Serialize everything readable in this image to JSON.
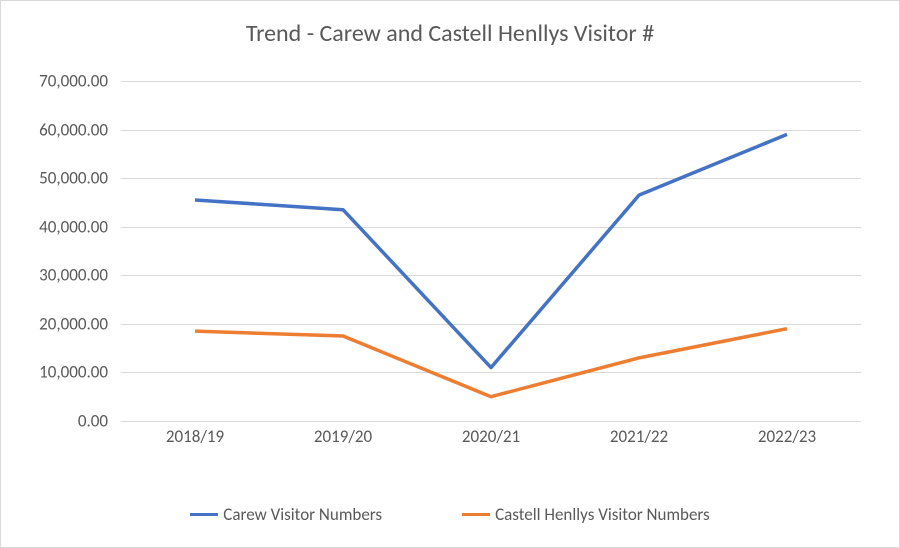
{
  "chart": {
    "type": "line",
    "title": "Trend - Carew and Castell Henllys Visitor #",
    "title_fontsize": 24,
    "title_color": "#595959",
    "background_color": "#ffffff",
    "border_color": "#d9d9d9",
    "tick_fontsize": 17,
    "tick_color": "#595959",
    "grid_color": "#d9d9d9",
    "ylim": [
      0,
      70000
    ],
    "ytick_step": 10000,
    "y_ticks": [
      "0.00",
      "10,000.00",
      "20,000.00",
      "30,000.00",
      "40,000.00",
      "50,000.00",
      "60,000.00",
      "70,000.00"
    ],
    "x_labels": [
      "2018/19",
      "2019/20",
      "2020/21",
      "2021/22",
      "2022/23"
    ],
    "line_width": 3.5,
    "series": [
      {
        "name": "Carew Visitor Numbers",
        "color": "#4472c4",
        "values": [
          45500,
          43500,
          11000,
          46500,
          59000
        ]
      },
      {
        "name": "Castell Henllys Visitor Numbers",
        "color": "#ed7d31",
        "values": [
          18500,
          17500,
          5000,
          13000,
          19000
        ]
      }
    ],
    "legend_fontsize": 17
  }
}
